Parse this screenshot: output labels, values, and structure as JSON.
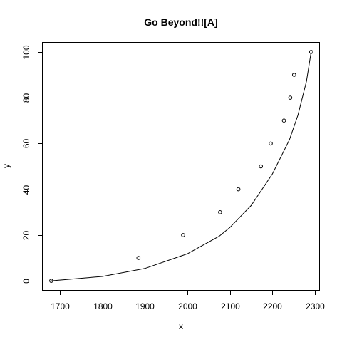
{
  "chart_data": {
    "type": "scatter",
    "title": "Go Beyond!![A]",
    "xlabel": "x",
    "ylabel": "y",
    "xlim": [
      1660,
      2310
    ],
    "ylim": [
      -4,
      104
    ],
    "x_ticks": [
      1700,
      1800,
      1900,
      2000,
      2100,
      2200,
      2300
    ],
    "y_ticks": [
      0,
      20,
      40,
      60,
      80,
      100
    ],
    "grid": false,
    "legend": "none",
    "points": [
      {
        "x": 1680,
        "y": 0
      },
      {
        "x": 1885,
        "y": 10
      },
      {
        "x": 1990,
        "y": 20
      },
      {
        "x": 2077,
        "y": 30
      },
      {
        "x": 2120,
        "y": 40
      },
      {
        "x": 2173,
        "y": 50
      },
      {
        "x": 2196,
        "y": 60
      },
      {
        "x": 2227,
        "y": 70
      },
      {
        "x": 2242,
        "y": 80
      },
      {
        "x": 2251,
        "y": 90
      },
      {
        "x": 2291,
        "y": 100
      }
    ],
    "fit_curve": [
      {
        "x": 1680,
        "y": 0
      },
      {
        "x": 1800,
        "y": 1.9
      },
      {
        "x": 1900,
        "y": 5.4
      },
      {
        "x": 2000,
        "y": 11.8
      },
      {
        "x": 2075,
        "y": 19.5
      },
      {
        "x": 2100,
        "y": 23.3
      },
      {
        "x": 2150,
        "y": 32.9
      },
      {
        "x": 2200,
        "y": 46.7
      },
      {
        "x": 2240,
        "y": 61.6
      },
      {
        "x": 2260,
        "y": 72.4
      },
      {
        "x": 2280,
        "y": 87.1
      },
      {
        "x": 2291,
        "y": 100
      }
    ]
  }
}
